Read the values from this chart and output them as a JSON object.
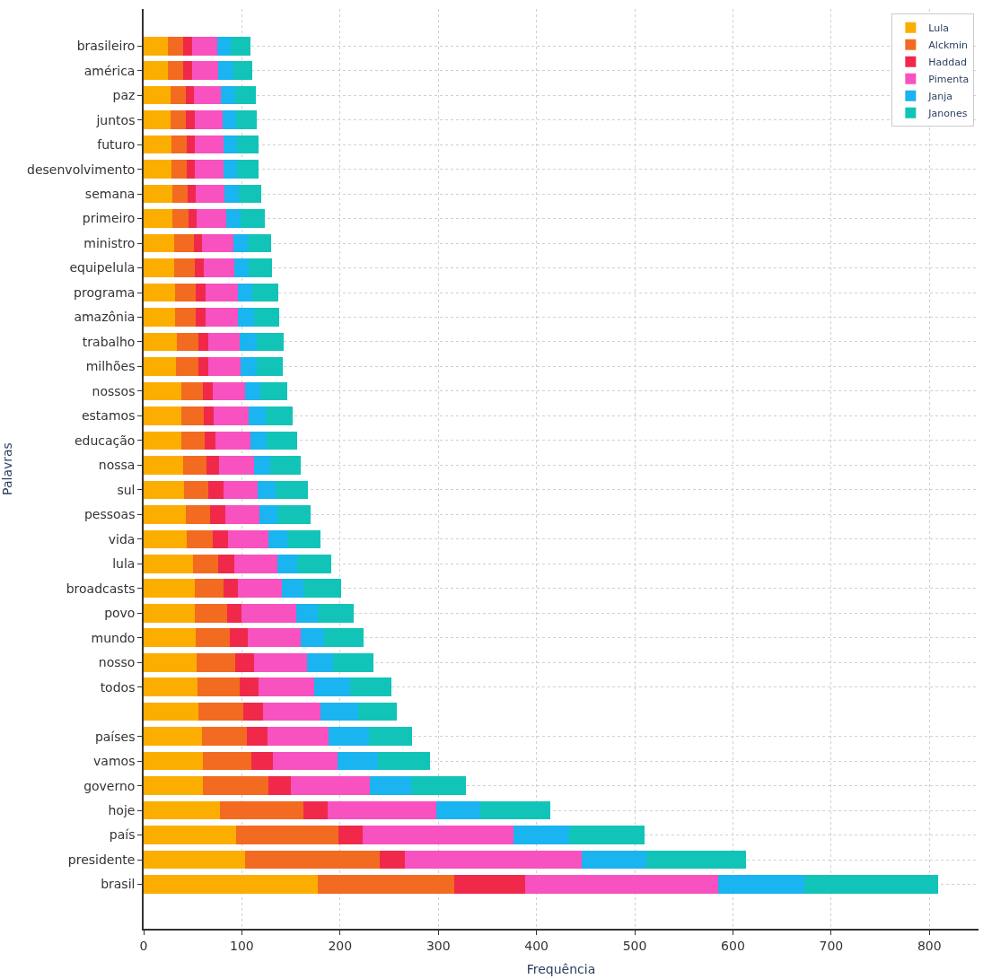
{
  "chart_data": {
    "type": "bar",
    "orientation": "horizontal",
    "stacked": true,
    "xlabel": "Frequência",
    "ylabel": "Palavras",
    "categories": [
      "brasileiro",
      "américa",
      "paz",
      "juntos",
      "futuro",
      "desenvolvimento",
      "semana",
      "primeiro",
      "ministro",
      "equipelula",
      "programa",
      "amazônia",
      "trabalho",
      "milhões",
      "nossos",
      "estamos",
      "educação",
      "nossa",
      "sul",
      "pessoas",
      "vida",
      "lula",
      "broadcasts",
      "povo",
      "mundo",
      "nosso",
      "todos",
      null,
      "países",
      "vamos",
      "governo",
      "hoje",
      "país",
      "presidente",
      "brasil"
    ],
    "series": [
      {
        "name": "Lula",
        "color": "#fcae00",
        "values": [
          25,
          25,
          27,
          27,
          28,
          28,
          29,
          29,
          31,
          31,
          32,
          32,
          34,
          33,
          38,
          38,
          38,
          40,
          41,
          43,
          44,
          50,
          52,
          52,
          53,
          54,
          55,
          56,
          59,
          60,
          60,
          78,
          94,
          103,
          177
        ]
      },
      {
        "name": "Alckmin",
        "color": "#f26b21",
        "values": [
          15,
          15,
          16,
          16,
          16,
          16,
          16,
          17,
          20,
          21,
          21,
          21,
          22,
          23,
          22,
          23,
          24,
          24,
          25,
          25,
          26,
          26,
          29,
          33,
          35,
          39,
          43,
          45,
          46,
          50,
          67,
          85,
          104,
          137,
          139
        ]
      },
      {
        "name": "Haddad",
        "color": "#f0294b",
        "values": [
          9,
          9,
          8,
          9,
          8,
          8,
          8,
          8,
          8,
          9,
          10,
          10,
          10,
          10,
          10,
          10,
          11,
          13,
          15,
          15,
          16,
          16,
          15,
          15,
          18,
          19,
          19,
          21,
          21,
          22,
          23,
          24,
          25,
          26,
          72
        ]
      },
      {
        "name": "Pimenta",
        "color": "#f752c0",
        "values": [
          26,
          27,
          28,
          28,
          29,
          29,
          29,
          30,
          32,
          31,
          33,
          33,
          32,
          33,
          33,
          36,
          36,
          35,
          35,
          35,
          41,
          44,
          45,
          55,
          54,
          54,
          57,
          58,
          62,
          65,
          80,
          111,
          154,
          180,
          197
        ]
      },
      {
        "name": "Janja",
        "color": "#1ab4f0",
        "values": [
          14,
          15,
          14,
          14,
          14,
          14,
          15,
          15,
          15,
          15,
          15,
          16,
          17,
          16,
          16,
          17,
          16,
          17,
          18,
          18,
          19,
          20,
          22,
          22,
          24,
          27,
          36,
          38,
          41,
          42,
          42,
          45,
          56,
          66,
          88
        ]
      },
      {
        "name": "Janones",
        "color": "#12c4b8",
        "values": [
          20,
          20,
          21,
          21,
          22,
          22,
          23,
          24,
          24,
          24,
          26,
          26,
          28,
          27,
          27,
          28,
          31,
          31,
          33,
          34,
          34,
          35,
          38,
          37,
          40,
          41,
          42,
          40,
          44,
          53,
          56,
          71,
          77,
          101,
          136
        ]
      }
    ],
    "xlim": [
      0,
      850
    ],
    "xticks": [
      0,
      100,
      200,
      300,
      400,
      500,
      600,
      700,
      800
    ],
    "grid": true,
    "legend": "top right"
  }
}
